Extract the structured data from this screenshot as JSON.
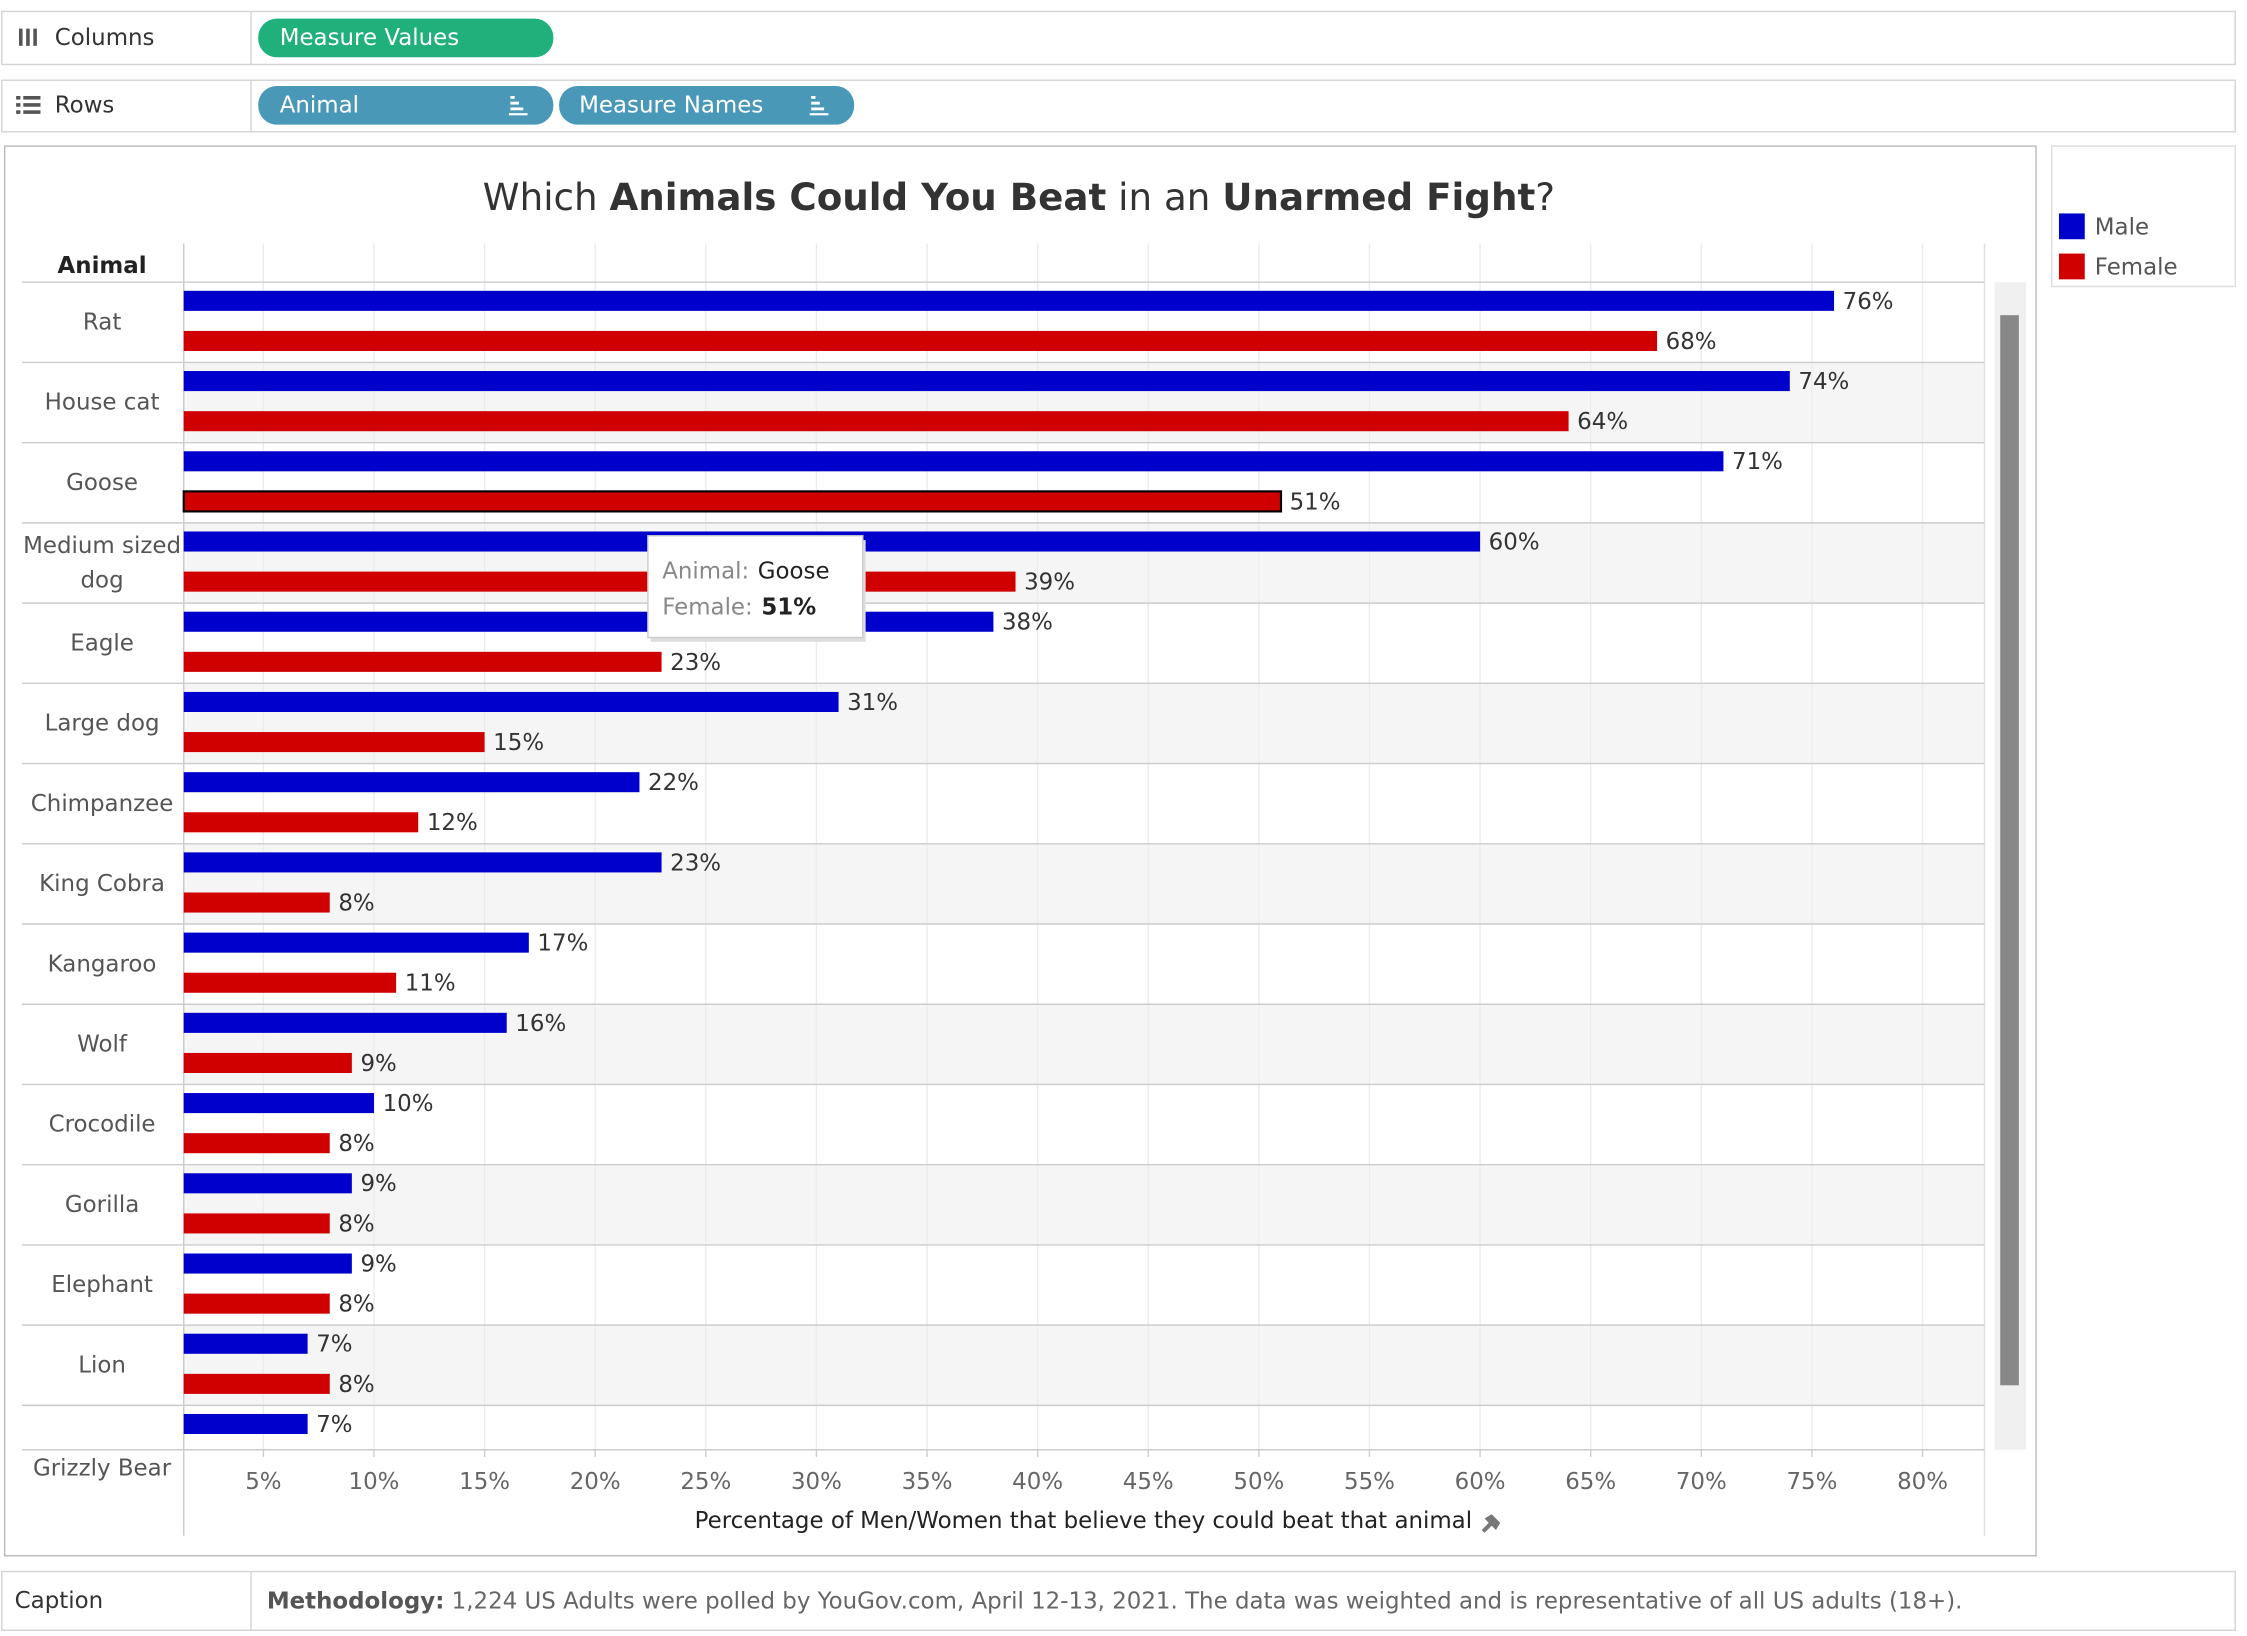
{
  "shelves": {
    "columns": {
      "label": "Columns",
      "pills": [
        "Measure Values"
      ]
    },
    "rows": {
      "label": "Rows",
      "pills": [
        "Animal",
        "Measure Names"
      ]
    }
  },
  "chart_data": {
    "type": "bar",
    "title_segments": [
      {
        "text": "Which ",
        "bold": false
      },
      {
        "text": "Animals Could You Beat",
        "bold": true
      },
      {
        "text": " in an ",
        "bold": false
      },
      {
        "text": "Unarmed Fight",
        "bold": true
      },
      {
        "text": "?",
        "bold": false
      }
    ],
    "row_header": "Animal",
    "categories": [
      "Rat",
      "House cat",
      "Goose",
      "Medium sized dog",
      "Eagle",
      "Large dog",
      "Chimpanzee",
      "King Cobra",
      "Kangaroo",
      "Wolf",
      "Crocodile",
      "Gorilla",
      "Elephant",
      "Lion",
      "Grizzly Bear"
    ],
    "series": [
      {
        "name": "Male",
        "color": "#0000cc",
        "values": [
          76,
          74,
          71,
          60,
          38,
          31,
          22,
          23,
          17,
          16,
          10,
          9,
          9,
          7,
          7
        ],
        "value_labels": [
          "76%",
          "74%",
          "71%",
          "60%",
          "38%",
          "31%",
          "22%",
          "23%",
          "17%",
          "16%",
          "10%",
          "9%",
          "9%",
          "7%",
          "7%"
        ]
      },
      {
        "name": "Female",
        "color": "#d00000",
        "values": [
          68,
          64,
          51,
          39,
          23,
          15,
          12,
          8,
          11,
          9,
          8,
          8,
          8,
          8,
          null
        ],
        "value_labels": [
          "68%",
          "64%",
          "51%",
          "39%",
          "23%",
          "15%",
          "12%",
          "8%",
          "11%",
          "9%",
          "8%",
          "8%",
          "8%",
          "8%",
          null
        ]
      }
    ],
    "xlabel": "Percentage of Men/Women that believe they could beat that animal",
    "xlim": [
      1.4,
      82.8
    ],
    "xticks": [
      {
        "value": 5,
        "label": "5%"
      },
      {
        "value": 10,
        "label": "10%"
      },
      {
        "value": 15,
        "label": "15%"
      },
      {
        "value": 20,
        "label": "20%"
      },
      {
        "value": 25,
        "label": "25%"
      },
      {
        "value": 30,
        "label": "30%"
      },
      {
        "value": 35,
        "label": "35%"
      },
      {
        "value": 40,
        "label": "40%"
      },
      {
        "value": 45,
        "label": "45%"
      },
      {
        "value": 50,
        "label": "50%"
      },
      {
        "value": 55,
        "label": "55%"
      },
      {
        "value": 60,
        "label": "60%"
      },
      {
        "value": 65,
        "label": "65%"
      },
      {
        "value": 70,
        "label": "70%"
      },
      {
        "value": 75,
        "label": "75%"
      },
      {
        "value": 80,
        "label": "80%"
      }
    ],
    "grid": true,
    "orientation": "horizontal",
    "legend": "right"
  },
  "tooltip": {
    "animal_label": "Animal:",
    "animal": "Goose",
    "measure_label": "Female:",
    "measure_value": "51%"
  },
  "caption": {
    "label": "Caption",
    "lead": "Methodology:",
    "text": " 1,224 US Adults were polled by YouGov.com, April 12-13, 2021. The data was weighted and is representative of all US adults (18+)."
  }
}
